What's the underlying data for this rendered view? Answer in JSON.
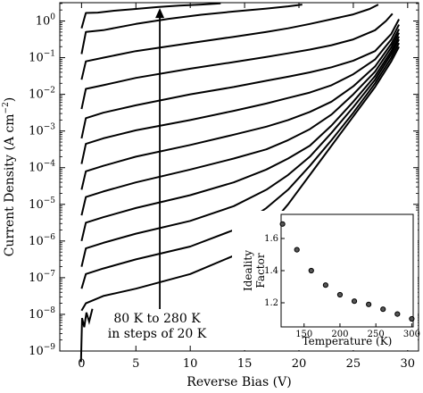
{
  "chart_data": [
    {
      "type": "line",
      "xlabel": "Reverse Bias (V)",
      "ylabel": "Current Density (A cm",
      "ylabel_exponent": "−2",
      "ylabel_close": ")",
      "xlim": [
        -2,
        31
      ],
      "ylim_log10": [
        -9,
        0.5
      ],
      "yscale": "log",
      "x_ticks": [
        0,
        5,
        10,
        15,
        20,
        25,
        30
      ],
      "x_tick_labels": [
        "0",
        "5",
        "10",
        "15",
        "20",
        "25",
        "30"
      ],
      "y_ticks_log10": [
        -9,
        -8,
        -7,
        -6,
        -5,
        -4,
        -3,
        -2,
        -1,
        0
      ],
      "y_tick_base": "10",
      "y_tick_exponents": [
        "−9",
        "−8",
        "−7",
        "−6",
        "−5",
        "−4",
        "−3",
        "−2",
        "−1",
        "0"
      ],
      "annotation": {
        "line1": "80 K to 280 K",
        "line2": "in steps of 20 K",
        "arrow_from": [
          7.2,
          -8.3
        ],
        "arrow_to": [
          7.2,
          0.35
        ]
      },
      "series": [
        {
          "values": [
            [
              0,
              -7.9
            ],
            [
              0.4,
              -7.7
            ],
            [
              2,
              -7.5
            ],
            [
              5,
              -7.3
            ],
            [
              10,
              -6.9
            ],
            [
              14,
              -6.4
            ],
            [
              17,
              -5.7
            ],
            [
              19,
              -5.0
            ],
            [
              21,
              -4.2
            ],
            [
              23,
              -3.4
            ],
            [
              25,
              -2.6
            ],
            [
              27,
              -1.8
            ],
            [
              28.5,
              -1.1
            ],
            [
              29.2,
              -0.7
            ]
          ]
        },
        {
          "values": [
            [
              0,
              -7.3
            ],
            [
              0.4,
              -6.9
            ],
            [
              2,
              -6.75
            ],
            [
              5,
              -6.5
            ],
            [
              10,
              -6.15
            ],
            [
              14,
              -5.7
            ],
            [
              17,
              -5.1
            ],
            [
              19,
              -4.6
            ],
            [
              21,
              -3.95
            ],
            [
              23,
              -3.25
            ],
            [
              25,
              -2.5
            ],
            [
              27,
              -1.7
            ],
            [
              28.5,
              -1.0
            ],
            [
              29.2,
              -0.6
            ]
          ]
        },
        {
          "values": [
            [
              0,
              -6.7
            ],
            [
              0.4,
              -6.2
            ],
            [
              2,
              -6.05
            ],
            [
              5,
              -5.8
            ],
            [
              10,
              -5.45
            ],
            [
              14,
              -5.05
            ],
            [
              17,
              -4.6
            ],
            [
              19,
              -4.2
            ],
            [
              21,
              -3.7
            ],
            [
              23,
              -3.05
            ],
            [
              25,
              -2.35
            ],
            [
              27,
              -1.6
            ],
            [
              28.5,
              -0.9
            ],
            [
              29.2,
              -0.5
            ]
          ]
        },
        {
          "values": [
            [
              0,
              -6.0
            ],
            [
              0.4,
              -5.5
            ],
            [
              2,
              -5.35
            ],
            [
              5,
              -5.1
            ],
            [
              10,
              -4.75
            ],
            [
              14,
              -4.4
            ],
            [
              17,
              -4.05
            ],
            [
              19,
              -3.75
            ],
            [
              21,
              -3.4
            ],
            [
              23,
              -2.85
            ],
            [
              25,
              -2.2
            ],
            [
              27,
              -1.5
            ],
            [
              28.5,
              -0.82
            ],
            [
              29.2,
              -0.42
            ]
          ]
        },
        {
          "values": [
            [
              0,
              -5.3
            ],
            [
              0.4,
              -4.8
            ],
            [
              2,
              -4.65
            ],
            [
              5,
              -4.4
            ],
            [
              10,
              -4.05
            ],
            [
              14,
              -3.75
            ],
            [
              17,
              -3.5
            ],
            [
              19,
              -3.25
            ],
            [
              21,
              -2.95
            ],
            [
              23,
              -2.55
            ],
            [
              25,
              -2.0
            ],
            [
              27,
              -1.38
            ],
            [
              28.5,
              -0.72
            ],
            [
              29.2,
              -0.32
            ]
          ]
        },
        {
          "values": [
            [
              0,
              -4.6
            ],
            [
              0.4,
              -4.1
            ],
            [
              2,
              -3.95
            ],
            [
              5,
              -3.7
            ],
            [
              10,
              -3.38
            ],
            [
              14,
              -3.1
            ],
            [
              17,
              -2.88
            ],
            [
              19,
              -2.7
            ],
            [
              21,
              -2.48
            ],
            [
              23,
              -2.2
            ],
            [
              25,
              -1.78
            ],
            [
              27,
              -1.24
            ],
            [
              28.5,
              -0.62
            ],
            [
              29.2,
              -0.22
            ]
          ]
        },
        {
          "values": [
            [
              0,
              -3.9
            ],
            [
              0.4,
              -3.35
            ],
            [
              2,
              -3.2
            ],
            [
              5,
              -2.98
            ],
            [
              10,
              -2.7
            ],
            [
              14,
              -2.45
            ],
            [
              17,
              -2.25
            ],
            [
              19,
              -2.1
            ],
            [
              21,
              -1.95
            ],
            [
              23,
              -1.75
            ],
            [
              25,
              -1.45
            ],
            [
              27,
              -1.05
            ],
            [
              28.5,
              -0.5
            ],
            [
              29.2,
              -0.1
            ]
          ]
        },
        {
          "values": [
            [
              0,
              -3.2
            ],
            [
              0.4,
              -2.65
            ],
            [
              2,
              -2.5
            ],
            [
              5,
              -2.3
            ],
            [
              10,
              -2.0
            ],
            [
              14,
              -1.8
            ],
            [
              17,
              -1.63
            ],
            [
              19,
              -1.52
            ],
            [
              21,
              -1.4
            ],
            [
              23,
              -1.26
            ],
            [
              25,
              -1.08
            ],
            [
              27,
              -0.82
            ],
            [
              28.5,
              -0.35
            ],
            [
              29.2,
              0.05
            ]
          ]
        },
        {
          "values": [
            [
              0,
              -2.4
            ],
            [
              0.4,
              -1.85
            ],
            [
              2,
              -1.75
            ],
            [
              5,
              -1.55
            ],
            [
              10,
              -1.3
            ],
            [
              14,
              -1.12
            ],
            [
              17,
              -0.98
            ],
            [
              19,
              -0.88
            ],
            [
              21,
              -0.78
            ],
            [
              23,
              -0.66
            ],
            [
              25,
              -0.5
            ],
            [
              27,
              -0.25
            ],
            [
              28,
              0.0
            ],
            [
              28.6,
              0.2
            ]
          ]
        },
        {
          "values": [
            [
              0,
              -1.6
            ],
            [
              0.4,
              -1.1
            ],
            [
              2,
              -1.0
            ],
            [
              5,
              -0.82
            ],
            [
              10,
              -0.6
            ],
            [
              14,
              -0.43
            ],
            [
              17,
              -0.3
            ],
            [
              19,
              -0.2
            ],
            [
              21,
              -0.08
            ],
            [
              23,
              0.05
            ],
            [
              25,
              0.18
            ],
            [
              26.5,
              0.33
            ],
            [
              27.3,
              0.45
            ]
          ]
        },
        {
          "values": [
            [
              0,
              -0.9
            ],
            [
              0.4,
              -0.3
            ],
            [
              2,
              -0.25
            ],
            [
              5,
              -0.08
            ],
            [
              8,
              0.06
            ],
            [
              11,
              0.17
            ],
            [
              14,
              0.26
            ],
            [
              17,
              0.34
            ],
            [
              19,
              0.4
            ],
            [
              20.3,
              0.45
            ]
          ]
        },
        {
          "values": [
            [
              0,
              -0.2
            ],
            [
              0.4,
              0.22
            ],
            [
              1.5,
              0.23
            ],
            [
              3,
              0.28
            ],
            [
              5,
              0.33
            ],
            [
              7,
              0.38
            ],
            [
              9,
              0.42
            ],
            [
              11,
              0.45
            ],
            [
              12.8,
              0.48
            ]
          ]
        }
      ]
    },
    {
      "type": "scatter",
      "xlabel": "Temperature (K)",
      "ylabel_line1": "Ideality",
      "ylabel_line2": "Factor",
      "xlim": [
        118,
        302
      ],
      "ylim": [
        1.05,
        1.75
      ],
      "x_ticks": [
        150,
        200,
        250,
        300
      ],
      "x_tick_labels": [
        "150",
        "200",
        "250",
        "300"
      ],
      "y_ticks": [
        1.2,
        1.4,
        1.6
      ],
      "y_tick_labels": [
        "1.2",
        "1.4",
        "1.6"
      ],
      "x": [
        120,
        140,
        160,
        180,
        200,
        220,
        240,
        260,
        280,
        300
      ],
      "y": [
        1.69,
        1.53,
        1.4,
        1.31,
        1.25,
        1.21,
        1.19,
        1.16,
        1.13,
        1.1
      ]
    }
  ]
}
